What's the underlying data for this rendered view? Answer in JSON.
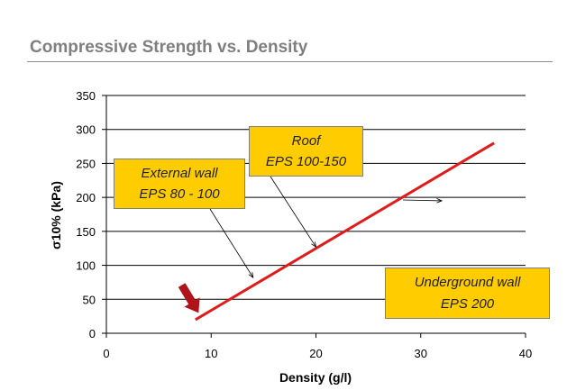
{
  "slide": {
    "title": "Compressive Strength vs. Density"
  },
  "chart_data": {
    "type": "line",
    "title": "",
    "xlabel": "Density (g/l)",
    "ylabel": "σ10% (kPa)",
    "xlim": [
      0,
      40
    ],
    "ylim": [
      0,
      350
    ],
    "x_ticks": [
      0,
      10,
      20,
      30,
      40
    ],
    "y_ticks": [
      0,
      50,
      100,
      150,
      200,
      250,
      300,
      350
    ],
    "grid": "horizontal",
    "series": [
      {
        "name": "Compressive strength",
        "color": "#e01b1b",
        "x": [
          8.5,
          37
        ],
        "y": [
          20,
          280
        ]
      }
    ],
    "annotations": [
      {
        "id": "external-wall",
        "lines": [
          "External wall",
          "EPS 80 - 100"
        ],
        "points_to": {
          "x": 14,
          "y": 82
        }
      },
      {
        "id": "roof",
        "lines": [
          "Roof",
          "EPS 100-150"
        ],
        "points_to": {
          "x": 20,
          "y": 127
        }
      },
      {
        "id": "underground-wall",
        "lines": [
          "Underground wall",
          "EPS 200"
        ],
        "points_to": {
          "x": 32,
          "y": 195
        }
      }
    ],
    "marker_arrow": {
      "color": "#b0141b",
      "points_to": {
        "x": 8.8,
        "y": 30
      }
    }
  }
}
